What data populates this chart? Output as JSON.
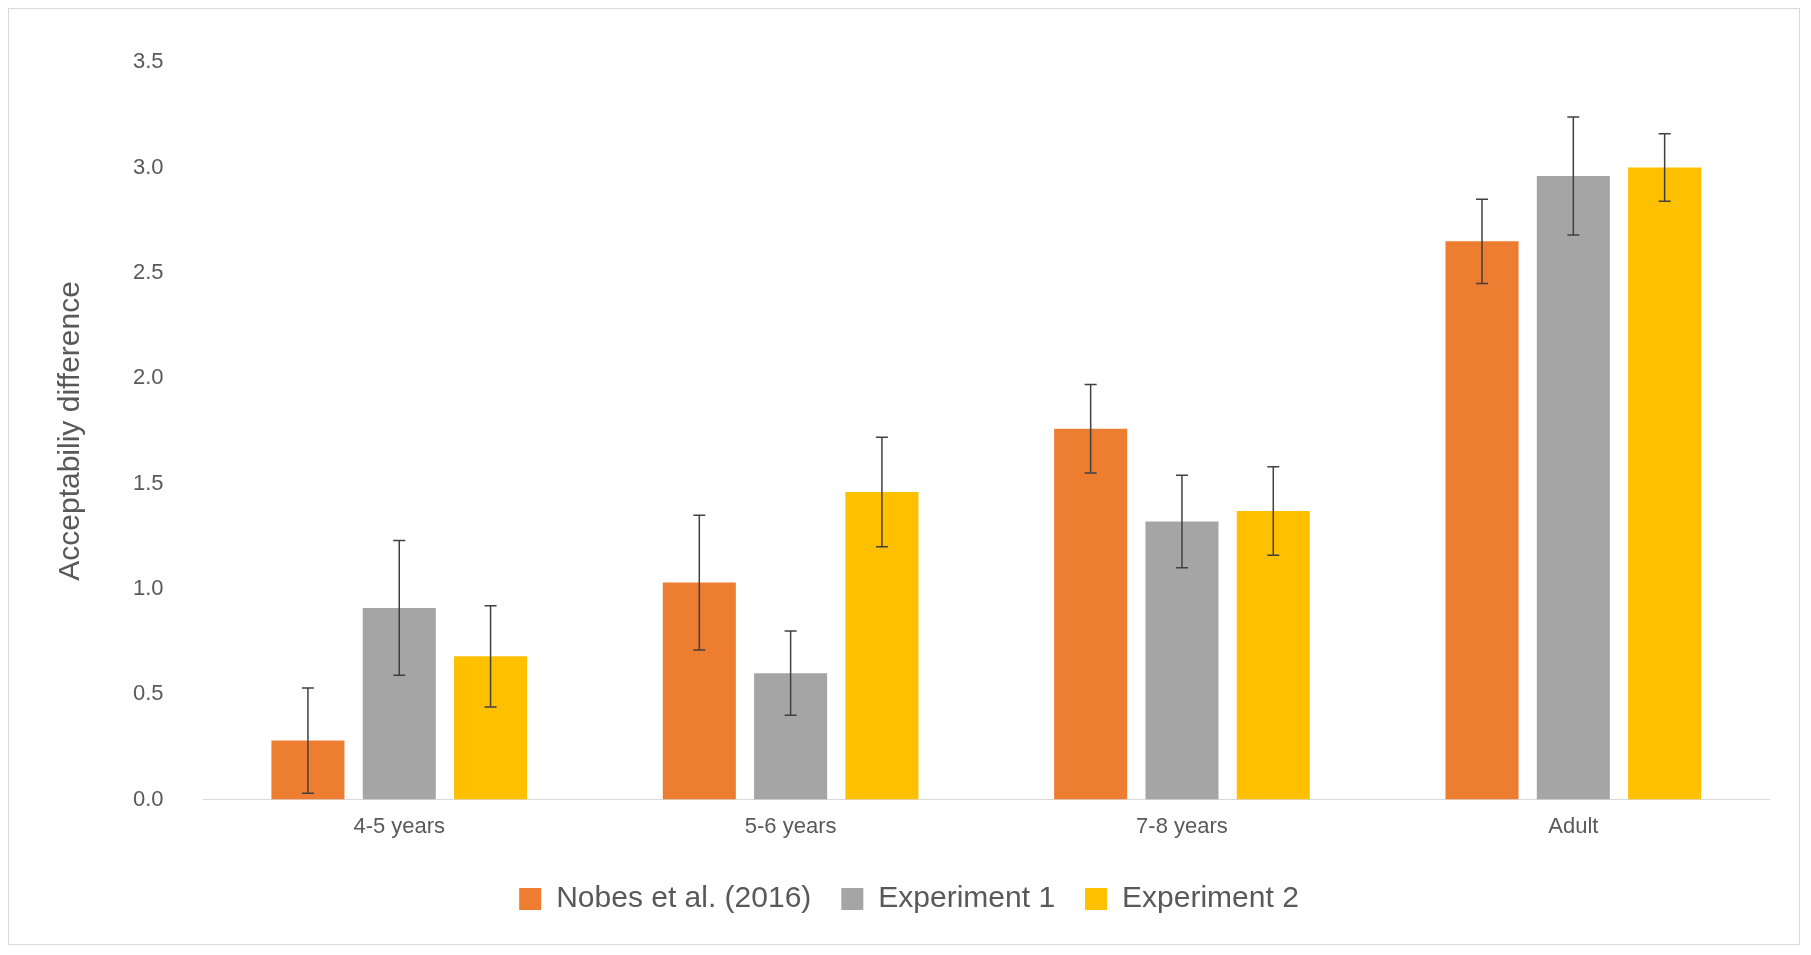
{
  "chart_data": {
    "type": "bar",
    "ylabel": "Acceptabiliy difference",
    "categories": [
      "4-5 years",
      "5-6 years",
      "7-8 years",
      "Adult"
    ],
    "series": [
      {
        "name": "Nobes et al. (2016)",
        "color": "#ed7d31",
        "values": [
          0.28,
          1.03,
          1.76,
          2.65
        ],
        "errors": [
          0.25,
          0.32,
          0.21,
          0.2
        ]
      },
      {
        "name": "Experiment 1",
        "color": "#a5a5a5",
        "values": [
          0.91,
          0.6,
          1.32,
          2.96
        ],
        "errors": [
          0.32,
          0.2,
          0.22,
          0.28
        ]
      },
      {
        "name": "Experiment 2",
        "color": "#ffc000",
        "values": [
          0.68,
          1.46,
          1.37,
          3.0
        ],
        "errors": [
          0.24,
          0.26,
          0.21,
          0.16
        ]
      }
    ],
    "ylim": [
      0,
      3.5
    ],
    "yticks": [
      {
        "value": 0,
        "label": "0.0"
      },
      {
        "value": 0.5,
        "label": "0.5"
      },
      {
        "value": 1,
        "label": "1.0"
      },
      {
        "value": 1.5,
        "label": "1.5"
      },
      {
        "value": 2,
        "label": "2.0"
      },
      {
        "value": 2.5,
        "label": "2.5"
      },
      {
        "value": 3,
        "label": "3.0"
      },
      {
        "value": 3.5,
        "label": "3.5"
      }
    ],
    "grid": false,
    "legend": "bottom"
  }
}
